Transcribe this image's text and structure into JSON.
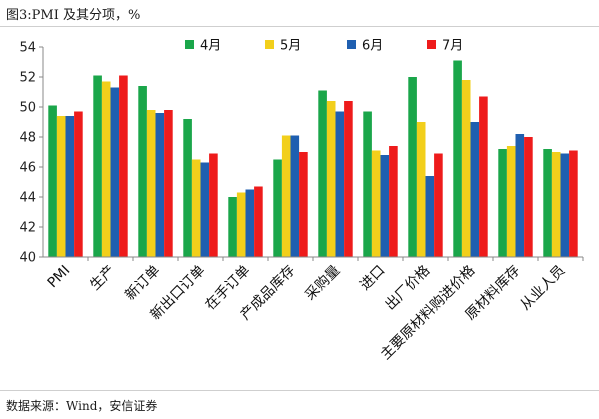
{
  "header": {
    "title": "图3:PMI 及其分项，%"
  },
  "footer": {
    "source": "数据来源：Wind，安信证券"
  },
  "chart_data": {
    "type": "bar",
    "title": "",
    "xlabel": "",
    "ylabel": "",
    "ylim": [
      40,
      54
    ],
    "yticks": [
      40,
      42,
      44,
      46,
      48,
      50,
      52,
      54
    ],
    "grid": false,
    "legend_position": "top-right",
    "categories": [
      "PMI",
      "生产",
      "新订单",
      "新出口订单",
      "在手订单",
      "产成品库存",
      "采购量",
      "进口",
      "出厂价格",
      "主要原材料购进价格",
      "原材料库存",
      "从业人员"
    ],
    "series": [
      {
        "name": "4月",
        "color": "#1aa64a",
        "values": [
          50.1,
          52.1,
          51.4,
          49.2,
          44.0,
          46.5,
          51.1,
          49.7,
          52.0,
          53.1,
          47.2,
          47.2
        ]
      },
      {
        "name": "5月",
        "color": "#f2cf1b",
        "values": [
          49.4,
          51.7,
          49.8,
          46.5,
          44.3,
          48.1,
          50.4,
          47.1,
          49.0,
          51.8,
          47.4,
          47.0
        ]
      },
      {
        "name": "6月",
        "color": "#1f5fb0",
        "values": [
          49.4,
          51.3,
          49.6,
          46.3,
          44.5,
          48.1,
          49.7,
          46.8,
          45.4,
          49.0,
          48.2,
          46.9
        ]
      },
      {
        "name": "7月",
        "color": "#ee1b1b",
        "values": [
          49.7,
          52.1,
          49.8,
          46.9,
          44.7,
          47.0,
          50.4,
          47.4,
          46.9,
          50.7,
          48.0,
          47.1
        ]
      }
    ]
  }
}
